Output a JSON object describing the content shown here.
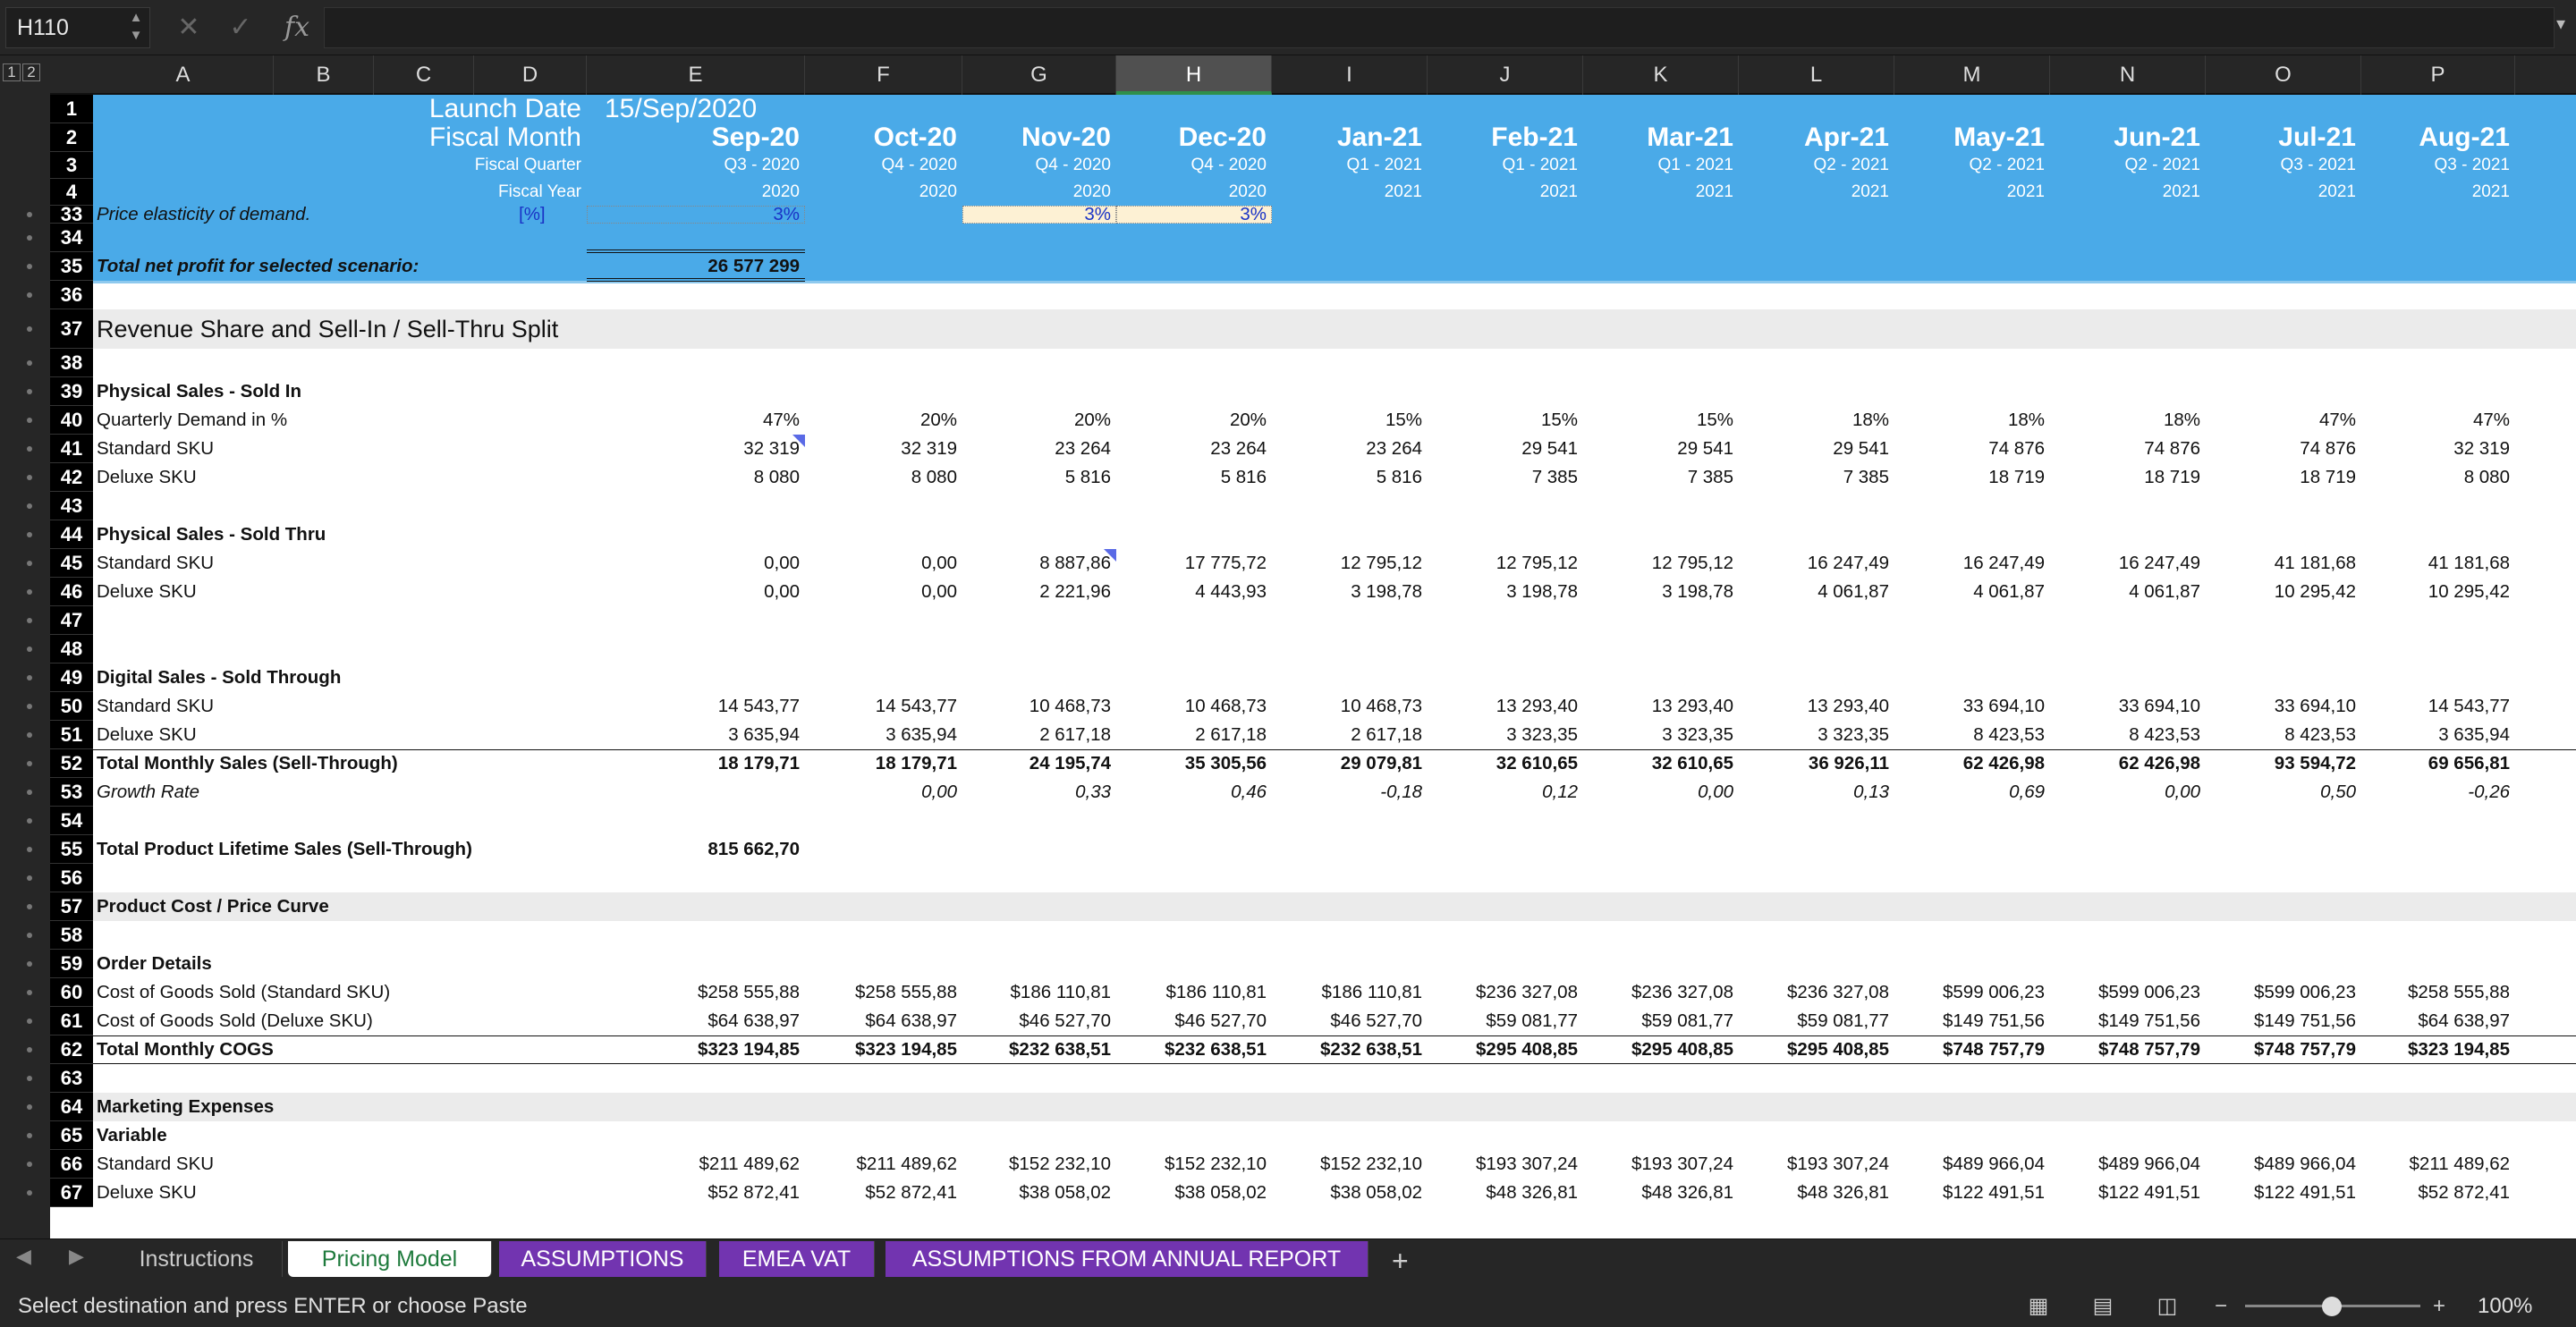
{
  "formula_bar": {
    "cell": "H110",
    "fx": "fx",
    "cancel": "✕",
    "enter": "✓",
    "formula": ""
  },
  "outline_levels": [
    "1",
    "2"
  ],
  "columns": [
    "A",
    "B",
    "C",
    "D",
    "E",
    "F",
    "G",
    "H",
    "I",
    "J",
    "K",
    "L",
    "M",
    "N",
    "O",
    "P"
  ],
  "rows": [
    "1",
    "2",
    "3",
    "4",
    "33",
    "34",
    "35",
    "36",
    "37",
    "38",
    "39",
    "40",
    "41",
    "42",
    "43",
    "44",
    "45",
    "46",
    "47",
    "48",
    "49",
    "50",
    "51",
    "52",
    "53",
    "54",
    "55",
    "56",
    "57",
    "58",
    "59",
    "60",
    "61",
    "62",
    "63",
    "64",
    "65",
    "66",
    "67"
  ],
  "header": {
    "launch_label": "Launch Date",
    "launch_value": "15/Sep/2020",
    "month_label": "Fiscal Month",
    "quarter_label": "Fiscal Quarter",
    "year_label": "Fiscal Year",
    "months": [
      "Sep-20",
      "Oct-20",
      "Nov-20",
      "Dec-20",
      "Jan-21",
      "Feb-21",
      "Mar-21",
      "Apr-21",
      "May-21",
      "Jun-21",
      "Jul-21",
      "Aug-21"
    ],
    "quarters": [
      "Q3 - 2020",
      "Q4 - 2020",
      "Q4 - 2020",
      "Q4 - 2020",
      "Q1 - 2021",
      "Q1 - 2021",
      "Q1 - 2021",
      "Q2 - 2021",
      "Q2 - 2021",
      "Q2 - 2021",
      "Q3 - 2021",
      "Q3 - 2021"
    ],
    "years": [
      "2020",
      "2020",
      "2020",
      "2020",
      "2021",
      "2021",
      "2021",
      "2021",
      "2021",
      "2021",
      "2021",
      "2021"
    ]
  },
  "r33": {
    "label": "Price elasticity of demand.",
    "unit": "[%]",
    "e": "3%",
    "g": "3%",
    "h": "3%"
  },
  "r35": {
    "label": "Total net profit for selected scenario:",
    "value": "26 577 299"
  },
  "r37": {
    "label": "Revenue Share and Sell-In / Sell-Thru Split"
  },
  "r39": {
    "label": "Physical Sales - Sold In"
  },
  "r40": {
    "label": "Quarterly Demand in %",
    "v": [
      "47%",
      "20%",
      "20%",
      "20%",
      "15%",
      "15%",
      "15%",
      "18%",
      "18%",
      "18%",
      "47%",
      "47%"
    ]
  },
  "r41": {
    "label": "Standard SKU",
    "v": [
      "32 319",
      "32 319",
      "23 264",
      "23 264",
      "23 264",
      "29 541",
      "29 541",
      "29 541",
      "74 876",
      "74 876",
      "74 876",
      "32 319"
    ]
  },
  "r42": {
    "label": "Deluxe SKU",
    "v": [
      "8 080",
      "8 080",
      "5 816",
      "5 816",
      "5 816",
      "7 385",
      "7 385",
      "7 385",
      "18 719",
      "18 719",
      "18 719",
      "8 080"
    ]
  },
  "r44": {
    "label": "Physical Sales - Sold Thru"
  },
  "r45": {
    "label": "Standard SKU",
    "v": [
      "0,00",
      "0,00",
      "8 887,86",
      "17 775,72",
      "12 795,12",
      "12 795,12",
      "12 795,12",
      "16 247,49",
      "16 247,49",
      "16 247,49",
      "41 181,68",
      "41 181,68"
    ]
  },
  "r46": {
    "label": "Deluxe SKU",
    "v": [
      "0,00",
      "0,00",
      "2 221,96",
      "4 443,93",
      "3 198,78",
      "3 198,78",
      "3 198,78",
      "4 061,87",
      "4 061,87",
      "4 061,87",
      "10 295,42",
      "10 295,42"
    ]
  },
  "r49": {
    "label": "Digital Sales - Sold Through"
  },
  "r50": {
    "label": "Standard SKU",
    "v": [
      "14 543,77",
      "14 543,77",
      "10 468,73",
      "10 468,73",
      "10 468,73",
      "13 293,40",
      "13 293,40",
      "13 293,40",
      "33 694,10",
      "33 694,10",
      "33 694,10",
      "14 543,77"
    ]
  },
  "r51": {
    "label": "Deluxe SKU",
    "v": [
      "3 635,94",
      "3 635,94",
      "2 617,18",
      "2 617,18",
      "2 617,18",
      "3 323,35",
      "3 323,35",
      "3 323,35",
      "8 423,53",
      "8 423,53",
      "8 423,53",
      "3 635,94"
    ]
  },
  "r52": {
    "label": "Total Monthly Sales (Sell-Through)",
    "v": [
      "18 179,71",
      "18 179,71",
      "24 195,74",
      "35 305,56",
      "29 079,81",
      "32 610,65",
      "32 610,65",
      "36 926,11",
      "62 426,98",
      "62 426,98",
      "93 594,72",
      "69 656,81"
    ]
  },
  "r53": {
    "label": "Growth Rate",
    "v": [
      "",
      "0,00",
      "0,33",
      "0,46",
      "-0,18",
      "0,12",
      "0,00",
      "0,13",
      "0,69",
      "0,00",
      "0,50",
      "-0,26"
    ]
  },
  "r55": {
    "label": "Total Product Lifetime Sales (Sell-Through)",
    "value": "815 662,70"
  },
  "r57": {
    "label": "Product Cost / Price Curve"
  },
  "r59": {
    "label": "Order Details"
  },
  "r60": {
    "label": "Cost of Goods Sold (Standard SKU)",
    "v": [
      "$258 555,88",
      "$258 555,88",
      "$186 110,81",
      "$186 110,81",
      "$186 110,81",
      "$236 327,08",
      "$236 327,08",
      "$236 327,08",
      "$599 006,23",
      "$599 006,23",
      "$599 006,23",
      "$258 555,88"
    ]
  },
  "r61": {
    "label": "Cost of Goods Sold (Deluxe SKU)",
    "v": [
      "$64 638,97",
      "$64 638,97",
      "$46 527,70",
      "$46 527,70",
      "$46 527,70",
      "$59 081,77",
      "$59 081,77",
      "$59 081,77",
      "$149 751,56",
      "$149 751,56",
      "$149 751,56",
      "$64 638,97"
    ]
  },
  "r62": {
    "label": "Total Monthly COGS",
    "v": [
      "$323 194,85",
      "$323 194,85",
      "$232 638,51",
      "$232 638,51",
      "$232 638,51",
      "$295 408,85",
      "$295 408,85",
      "$295 408,85",
      "$748 757,79",
      "$748 757,79",
      "$748 757,79",
      "$323 194,85"
    ]
  },
  "r64": {
    "label": "Marketing Expenses"
  },
  "r65": {
    "label": "Variable"
  },
  "r66": {
    "label": "Standard SKU",
    "v": [
      "$211 489,62",
      "$211 489,62",
      "$152 232,10",
      "$152 232,10",
      "$152 232,10",
      "$193 307,24",
      "$193 307,24",
      "$193 307,24",
      "$489 966,04",
      "$489 966,04",
      "$489 966,04",
      "$211 489,62"
    ]
  },
  "r67": {
    "label": "Deluxe SKU",
    "v": [
      "$52 872,41",
      "$52 872,41",
      "$38 058,02",
      "$38 058,02",
      "$38 058,02",
      "$48 326,81",
      "$48 326,81",
      "$48 326,81",
      "$122 491,51",
      "$122 491,51",
      "$122 491,51",
      "$52 872,41"
    ]
  },
  "tabs": [
    "Instructions",
    "Pricing Model",
    "ASSUMPTIONS",
    "EMEA VAT",
    "ASSUMPTIONS FROM ANNUAL REPORT"
  ],
  "add_sheet": "+",
  "status": {
    "message": "Select destination and press ENTER or choose Paste",
    "zoom": "100%",
    "zoom_minus": "−",
    "zoom_plus": "+"
  }
}
